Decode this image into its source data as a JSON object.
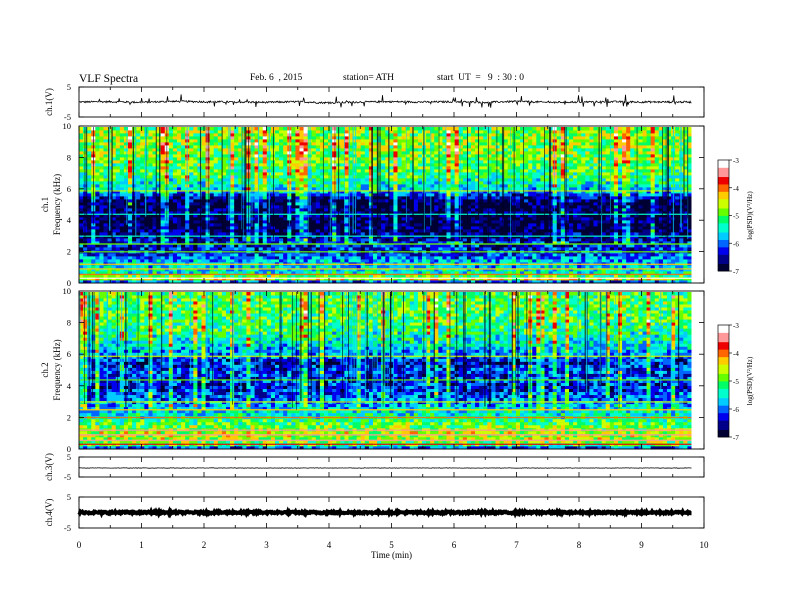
{
  "header": {
    "title": "VLF Spectra",
    "date": "Feb. 6  , 2015",
    "station": "station= ATH",
    "start": "start  UT  =   9  : 30 : 0"
  },
  "chart_data": [
    {
      "type": "line",
      "panel": "ch1-waveform",
      "ylabel": "ch.1(V)",
      "ylim": [
        -5,
        5
      ],
      "yticks": [
        "5",
        "-5"
      ],
      "x": [
        0,
        0.5,
        1,
        1.5,
        2,
        2.5,
        3,
        3.5,
        4,
        4.5,
        5,
        5.5,
        6,
        6.5,
        7,
        7.5,
        8,
        8.5,
        9,
        9.5,
        9.8
      ],
      "y": [
        0,
        0.1,
        -0.1,
        0.2,
        0.1,
        0,
        -0.1,
        0.1,
        -0.3,
        0,
        0.1,
        0,
        0.1,
        -0.1,
        0.2,
        -0.1,
        0,
        0.1,
        0,
        0,
        0
      ],
      "noise_amplitude": 0.3,
      "spike_amplitude": 2.5
    },
    {
      "type": "heatmap",
      "panel": "ch1-spectrogram",
      "ylabel": "ch.1\nFrequency  (kHz)",
      "ylim": [
        0,
        10
      ],
      "yticks": [
        "0",
        "2",
        "4",
        "6",
        "8",
        "10"
      ],
      "xlim": [
        0,
        10
      ],
      "data_end_min": 9.8,
      "colorbar": {
        "label": "log(PSD)(V²/Hz)",
        "range": [
          -7,
          -3
        ],
        "ticks": [
          "-3",
          "-4",
          "-5",
          "-6",
          "-7"
        ]
      },
      "psd_profile_khz": [
        0,
        0.3,
        0.6,
        1,
        1.5,
        2,
        2.5,
        3,
        3.5,
        4,
        5,
        5.5,
        6,
        7,
        8,
        9,
        10
      ],
      "psd_profile_log": [
        -6.8,
        -4.4,
        -5.4,
        -5.6,
        -5.8,
        -6.2,
        -6.3,
        -6.6,
        -6.85,
        -6.8,
        -6.85,
        -6.5,
        -5.6,
        -5.1,
        -4.9,
        -4.8,
        -4.8
      ]
    },
    {
      "type": "heatmap",
      "panel": "ch2-spectrogram",
      "ylabel": "ch.2\nFrequency  (kHz)",
      "ylim": [
        0,
        10
      ],
      "yticks": [
        "0",
        "2",
        "4",
        "6",
        "8",
        "10"
      ],
      "xlim": [
        0,
        10
      ],
      "data_end_min": 9.8,
      "colorbar": {
        "label": "log(PSD)(V²/Hz)",
        "range": [
          -7,
          -3
        ],
        "ticks": [
          "-3",
          "-4",
          "-5",
          "-6",
          "-7"
        ]
      },
      "psd_profile_khz": [
        0,
        0.3,
        0.6,
        1,
        1.5,
        2,
        2.5,
        3,
        3.5,
        4,
        5,
        5.5,
        6,
        7,
        8,
        9,
        10
      ],
      "psd_profile_log": [
        -6.6,
        -5.0,
        -4.7,
        -4.6,
        -4.9,
        -5.3,
        -5.6,
        -5.9,
        -6.1,
        -6.3,
        -6.1,
        -6.4,
        -5.9,
        -5.4,
        -5.1,
        -5.0,
        -5.0
      ]
    },
    {
      "type": "line",
      "panel": "ch3-waveform",
      "ylabel": "ch.3(V)",
      "ylim": [
        -5,
        5
      ],
      "yticks": [
        "5",
        "-5"
      ],
      "x": [
        0,
        9.8
      ],
      "y": [
        -0.5,
        -0.5
      ],
      "noise_amplitude": 0.12,
      "spike_amplitude": 0
    },
    {
      "type": "line",
      "panel": "ch4-waveform",
      "ylabel": "ch.4(V)",
      "ylim": [
        -5,
        5
      ],
      "yticks": [
        "5",
        "-5"
      ],
      "x": [
        0,
        9.8
      ],
      "y": [
        0,
        0
      ],
      "noise_amplitude": 0.3,
      "spike_amplitude": 0
    }
  ],
  "time_axis": {
    "label": "Time  (min)",
    "ticks": [
      "0",
      "1",
      "2",
      "3",
      "4",
      "5",
      "6",
      "7",
      "8",
      "9",
      "10"
    ],
    "xlim": [
      0,
      10
    ]
  },
  "colormap": [
    "#000033",
    "#000088",
    "#0000ee",
    "#0066ff",
    "#00ccff",
    "#00ffcc",
    "#00ff66",
    "#66ff00",
    "#ccff00",
    "#ffcc00",
    "#ff6600",
    "#ee0000",
    "#ff9999",
    "#ffffff"
  ]
}
